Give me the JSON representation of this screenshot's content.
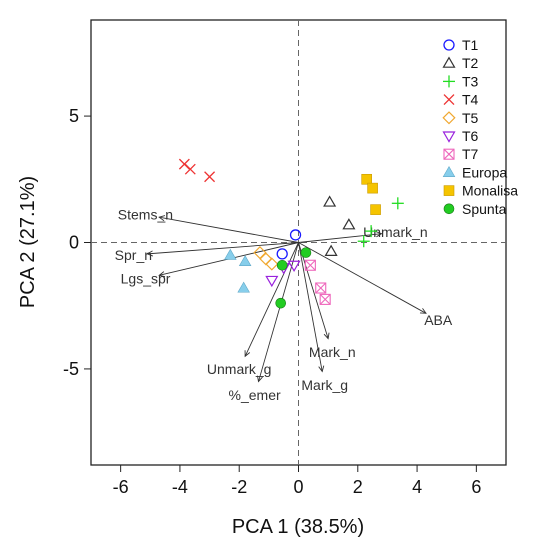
{
  "chart_data": {
    "type": "scatter",
    "subtype": "pca-biplot",
    "xlabel": "PCA 1 (38.5%)",
    "ylabel": "PCA 2 (27.1%)",
    "xlim": [
      -7,
      7
    ],
    "ylim": [
      -8.8,
      8.8
    ],
    "xticks": [
      -6,
      -4,
      -2,
      0,
      2,
      4,
      6
    ],
    "yticks": [
      -5,
      0,
      5
    ],
    "tick_labels_x": [
      "-6",
      "-4",
      "-2",
      "0",
      "2",
      "4",
      "6"
    ],
    "tick_labels_y": [
      "-5",
      "0",
      "5"
    ],
    "zero_lines": "dashed",
    "grid": false,
    "legend_position": "top-right",
    "series": [
      {
        "name": "T1",
        "marker": "circle-open",
        "color": "#1a1aff",
        "points": [
          [
            -0.1,
            0.3
          ],
          [
            -0.55,
            -0.45
          ]
        ]
      },
      {
        "name": "T2",
        "marker": "triangle-open",
        "color": "#333333",
        "points": [
          [
            1.05,
            1.6
          ],
          [
            1.7,
            0.7
          ],
          [
            1.1,
            -0.35
          ]
        ]
      },
      {
        "name": "T3",
        "marker": "plus",
        "color": "#22dd22",
        "points": [
          [
            3.35,
            1.55
          ],
          [
            2.45,
            0.45
          ],
          [
            2.2,
            0.05
          ]
        ]
      },
      {
        "name": "T4",
        "marker": "cross",
        "color": "#ee3333",
        "points": [
          [
            -3.85,
            3.1
          ],
          [
            -3.65,
            2.9
          ],
          [
            -3.0,
            2.6
          ]
        ]
      },
      {
        "name": "T5",
        "marker": "diamond-open",
        "color": "#f0a830",
        "points": [
          [
            -1.3,
            -0.4
          ],
          [
            -1.1,
            -0.65
          ],
          [
            -0.9,
            -0.85
          ]
        ]
      },
      {
        "name": "T6",
        "marker": "triangle-down-open",
        "color": "#9922dd",
        "points": [
          [
            -0.5,
            -1.0
          ],
          [
            -0.15,
            -0.9
          ],
          [
            -0.9,
            -1.5
          ]
        ]
      },
      {
        "name": "T7",
        "marker": "square-cross",
        "color": "#ee66bb",
        "points": [
          [
            0.4,
            -0.9
          ],
          [
            0.75,
            -1.8
          ],
          [
            0.9,
            -2.25
          ]
        ]
      },
      {
        "name": "Europa",
        "marker": "triangle-filled",
        "color": "#87ceeb",
        "points": [
          [
            -2.3,
            -0.5
          ],
          [
            -1.8,
            -0.75
          ],
          [
            -1.85,
            -1.8
          ]
        ]
      },
      {
        "name": "Monalisa",
        "marker": "square-filled",
        "color": "#f5c400",
        "points": [
          [
            2.3,
            2.5
          ],
          [
            2.5,
            2.15
          ],
          [
            2.6,
            1.3
          ]
        ]
      },
      {
        "name": "Spunta",
        "marker": "circle-filled",
        "color": "#22cc22",
        "points": [
          [
            -0.55,
            -0.9
          ],
          [
            0.25,
            -0.4
          ],
          [
            -0.6,
            -2.4
          ]
        ]
      }
    ],
    "loadings": [
      {
        "name": "Stems_n",
        "x": -4.7,
        "y": 1.0
      },
      {
        "name": "Spr_n",
        "x": -5.1,
        "y": -0.45
      },
      {
        "name": "Lgs_spr",
        "x": -4.7,
        "y": -1.3
      },
      {
        "name": "Unmark_n",
        "x": 2.8,
        "y": 0.35
      },
      {
        "name": "ABA",
        "x": 4.3,
        "y": -2.8
      },
      {
        "name": "Mark_n",
        "x": 1.0,
        "y": -3.8
      },
      {
        "name": "Mark_g",
        "x": 0.8,
        "y": -5.1
      },
      {
        "name": "Unmark_g",
        "x": -1.8,
        "y": -4.5
      },
      {
        "name": "%_emer",
        "x": -1.35,
        "y": -5.5
      }
    ]
  }
}
